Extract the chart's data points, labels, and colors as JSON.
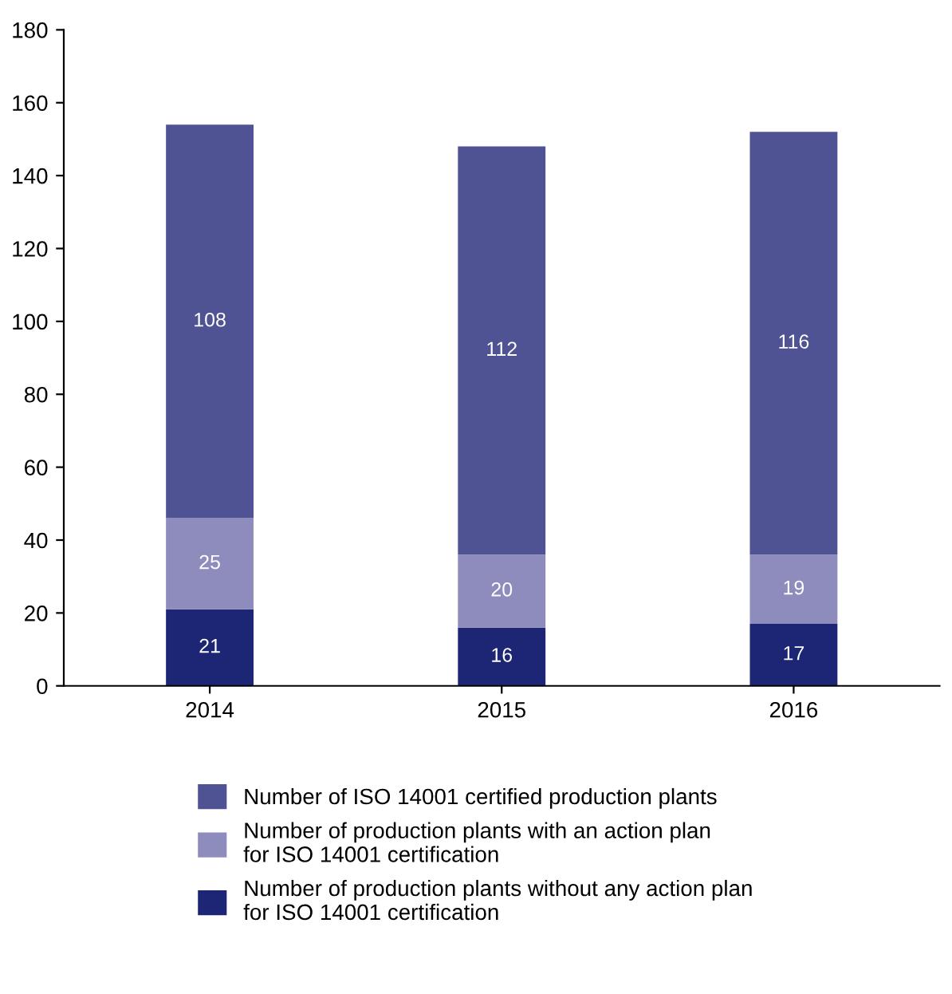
{
  "chart_data": {
    "type": "bar",
    "stacked": true,
    "categories": [
      "2014",
      "2015",
      "2016"
    ],
    "series": [
      {
        "name": "Number of production plants without any action plan\nfor ISO 14001 certification",
        "color": "#1c2675",
        "values": [
          21,
          16,
          17
        ]
      },
      {
        "name": "Number of production plants with an action plan\nfor ISO 14001 certification",
        "color": "#8e8cbd",
        "values": [
          25,
          20,
          19
        ]
      },
      {
        "name": "Number of ISO 14001 certified production plants",
        "color": "#4f5393",
        "values": [
          108,
          112,
          116
        ]
      }
    ],
    "ylim": [
      0,
      180
    ],
    "yticks": [
      0,
      20,
      40,
      60,
      80,
      100,
      120,
      140,
      160,
      180
    ],
    "data_labels": true,
    "grid": false,
    "legend": "bottom"
  }
}
